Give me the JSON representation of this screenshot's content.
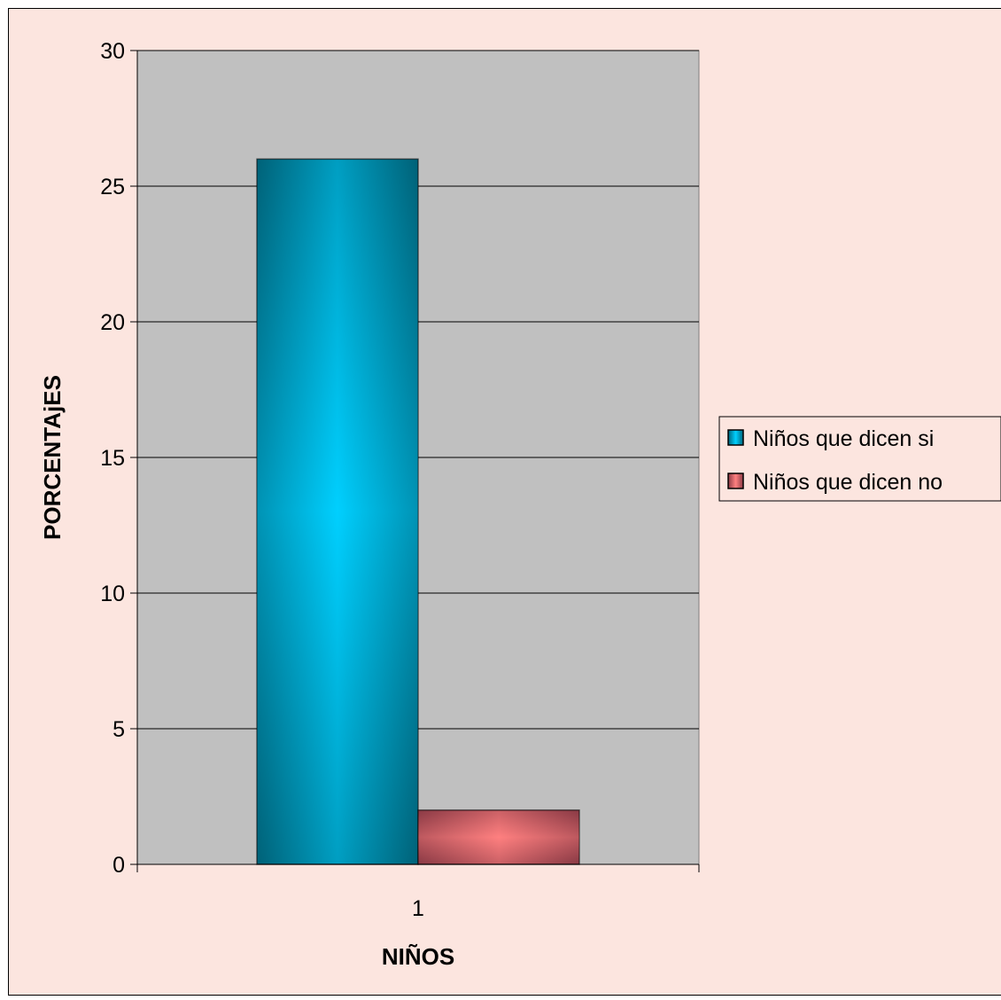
{
  "colors": {
    "chart_area_bg": "#fce5df",
    "plot_area_bg": "#c0c0c0",
    "gridline": "#000000",
    "series_si_dark": "#006278",
    "series_si_light": "#00d0ff",
    "series_no_dark": "#8a3a45",
    "series_no_light": "#ff8080"
  },
  "chart_data": {
    "type": "bar",
    "title": "",
    "xlabel": "NIÑOS",
    "ylabel": "PORCENTAjES",
    "categories": [
      "1"
    ],
    "ylim": [
      0,
      30
    ],
    "yticks": [
      "0",
      "5",
      "10",
      "15",
      "20",
      "25",
      "30"
    ],
    "grid": true,
    "legend_position": "right",
    "series": [
      {
        "name": "Niños que dicen si",
        "values": [
          26
        ]
      },
      {
        "name": "Niños que dicen no",
        "values": [
          2
        ]
      }
    ]
  }
}
